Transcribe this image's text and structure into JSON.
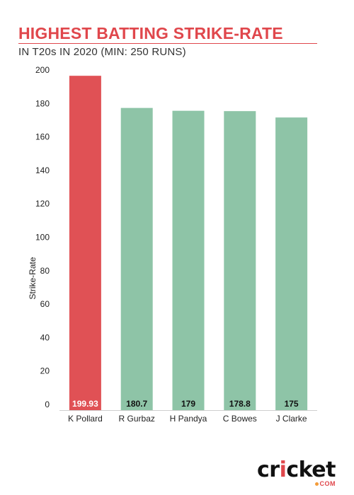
{
  "header": {
    "title": "HIGHEST BATTING STRIKE-RATE",
    "subtitle": "IN T20s IN 2020 (MIN: 250 RUNS)"
  },
  "logo": {
    "text_pre": "cr",
    "text_i": "i",
    "text_post": "cket",
    "sub": "COM"
  },
  "colors": {
    "highlight": "#e05155",
    "bar": "#8ec4a7",
    "title": "#e0474c"
  },
  "chart_data": {
    "type": "bar",
    "title": "HIGHEST BATTING STRIKE-RATE",
    "subtitle": "IN T20s IN 2020 (MIN: 250 RUNS)",
    "categories": [
      "K Pollard",
      "R Gurbaz",
      "H Pandya",
      "C Bowes",
      "J Clarke"
    ],
    "values": [
      199.93,
      180.7,
      179,
      178.8,
      175
    ],
    "value_labels": [
      "199.93",
      "180.7",
      "179",
      "178.8",
      "175"
    ],
    "highlight_index": 0,
    "xlabel": "",
    "ylabel": "Strike-Rate",
    "ylim": [
      0,
      200
    ],
    "yticks": [
      0,
      20,
      40,
      60,
      80,
      100,
      120,
      140,
      160,
      180,
      200
    ],
    "grid": false,
    "legend": "none"
  }
}
